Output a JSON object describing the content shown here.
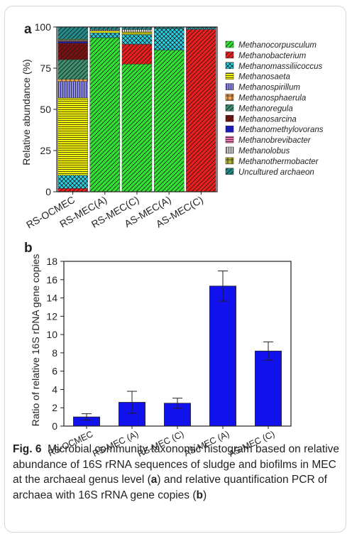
{
  "chart_data": [
    {
      "panel": "a",
      "type": "bar",
      "stacked": true,
      "ylabel": "Relative abundance (%)",
      "ylim": [
        0,
        100
      ],
      "yticks": [
        "0",
        "25",
        "50",
        "75",
        "100"
      ],
      "categories": [
        "RS-OCMEC",
        "RS-MEC(A)",
        "RS-MEC(C)",
        "AS-MEC(A)",
        "AS-MEC(C)"
      ],
      "legend_position": "right",
      "series": [
        {
          "name": "Methanocorpusculum",
          "color": "#33e533",
          "pattern": "diag",
          "values": [
            0,
            93.5,
            77.5,
            86,
            0
          ]
        },
        {
          "name": "Methanobacterium",
          "color": "#ee1c1c",
          "pattern": "diag",
          "values": [
            2,
            0,
            12,
            0,
            98.5
          ]
        },
        {
          "name": "Methanomassiliicoccus",
          "color": "#27d3e6",
          "pattern": "cross",
          "values": [
            8,
            3,
            6,
            13,
            0.8
          ]
        },
        {
          "name": "Methanosaeta",
          "color": "#f4f40a",
          "pattern": "hlines",
          "values": [
            47,
            1.2,
            1.5,
            0,
            0
          ]
        },
        {
          "name": "Methanospirillum",
          "color": "#8f8ff0",
          "pattern": "vlines",
          "values": [
            10,
            0,
            0,
            0,
            0
          ]
        },
        {
          "name": "Methanosphaerula",
          "color": "#f7a24d",
          "pattern": "grid",
          "values": [
            1.2,
            0,
            0,
            0,
            0
          ]
        },
        {
          "name": "Methanoregula",
          "color": "#3d8f70",
          "pattern": "diag",
          "values": [
            12,
            0,
            0,
            0,
            0
          ]
        },
        {
          "name": "Methanosarcina",
          "color": "#7a1010",
          "pattern": "diag",
          "values": [
            10,
            0,
            0,
            0,
            0
          ]
        },
        {
          "name": "Methanomethylovorans",
          "color": "#1a1ab8",
          "pattern": "none",
          "values": [
            0.8,
            0,
            0,
            0,
            0
          ]
        },
        {
          "name": "Methanobrevibacter",
          "color": "#f472b6",
          "pattern": "hlines",
          "values": [
            0.6,
            0,
            0,
            0,
            0
          ]
        },
        {
          "name": "Methanolobus",
          "color": "#d9d9d9",
          "pattern": "vlines",
          "values": [
            0.4,
            0.6,
            1.5,
            0,
            0
          ]
        },
        {
          "name": "Methanothermobacter",
          "color": "#b3b333",
          "pattern": "grid",
          "values": [
            0.5,
            0,
            0,
            0,
            0
          ]
        },
        {
          "name": "Uncultured archaeon",
          "color": "#238a8a",
          "pattern": "diag",
          "values": [
            7.5,
            1.7,
            1.5,
            1,
            0.7
          ]
        }
      ]
    },
    {
      "panel": "b",
      "type": "bar",
      "ylabel": "Ratio of relative 16S rDNA gene copies",
      "ylim": [
        0,
        18
      ],
      "yticks": [
        "0",
        "2",
        "4",
        "6",
        "8",
        "10",
        "12",
        "14",
        "16",
        "18"
      ],
      "categories": [
        "RS-OCMEC",
        "RS-MEC (A)",
        "RS-MEC (C)",
        "AS-MEC (A)",
        "AS-MEC (C)"
      ],
      "values": [
        1.0,
        2.6,
        2.5,
        15.3,
        8.2
      ],
      "errors": [
        0.35,
        1.2,
        0.55,
        1.65,
        1.0
      ],
      "color": "#1111ee"
    }
  ],
  "caption": {
    "fig_label": "Fig. 6",
    "text_1": "Microbial community taxonomic histogram based on relative abundance of 16S rRNA sequences of sludge and biofilms in MEC at the archaeal genus level (",
    "ref_a": "a",
    "text_2": ") and relative quantification PCR of archaea with 16S rRNA gene copies (",
    "ref_b": "b",
    "text_3": ")"
  }
}
